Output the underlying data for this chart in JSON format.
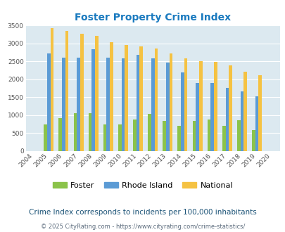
{
  "title": "Foster Property Crime Index",
  "years": [
    2004,
    2005,
    2006,
    2007,
    2008,
    2009,
    2010,
    2011,
    2012,
    2013,
    2014,
    2015,
    2016,
    2017,
    2018,
    2019,
    2020
  ],
  "foster": [
    0,
    730,
    920,
    1060,
    1060,
    740,
    730,
    870,
    1040,
    830,
    690,
    830,
    870,
    690,
    850,
    570,
    0
  ],
  "rhode_island": [
    0,
    2720,
    2600,
    2610,
    2830,
    2610,
    2580,
    2680,
    2580,
    2460,
    2190,
    1900,
    1900,
    1750,
    1650,
    1520,
    0
  ],
  "national": [
    0,
    3420,
    3340,
    3270,
    3210,
    3040,
    2950,
    2910,
    2860,
    2730,
    2590,
    2500,
    2480,
    2380,
    2200,
    2110,
    0
  ],
  "foster_color": "#8bc34a",
  "ri_color": "#5b9bd5",
  "national_color": "#f5c242",
  "bg_color": "#dce9f0",
  "title_color": "#1a7abf",
  "ylabel_max": 3500,
  "yticks": [
    0,
    500,
    1000,
    1500,
    2000,
    2500,
    3000,
    3500
  ],
  "subtitle": "Crime Index corresponds to incidents per 100,000 inhabitants",
  "footer": "© 2025 CityRating.com - https://www.cityrating.com/crime-statistics/",
  "legend_labels": [
    "Foster",
    "Rhode Island",
    "National"
  ],
  "subtitle_color": "#1a5276",
  "footer_color": "#5d6d7e"
}
